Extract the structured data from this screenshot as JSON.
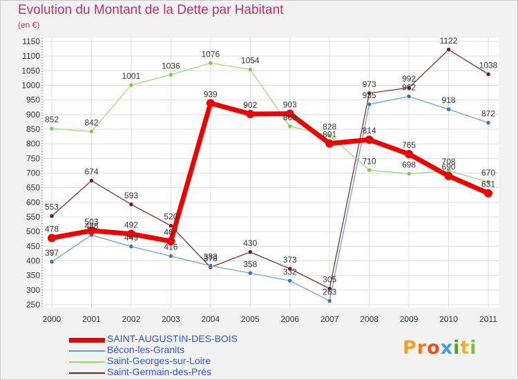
{
  "header": {
    "title": "Evolution du Montant de la Dette par Habitant",
    "unit": "(en €)"
  },
  "brand": {
    "text": "Proxiti",
    "colors": [
      "#f0a030",
      "#f07a20",
      "#e8501a",
      "#3aa0e0",
      "#5aa030",
      "#f0b020",
      "#80c040"
    ]
  },
  "chart_data": {
    "type": "line",
    "title": "Evolution du Montant de la Dette par Habitant",
    "ylabel": "(en €)",
    "xlabel": "",
    "ylim": [
      250,
      1150
    ],
    "y_ticks": [
      250,
      300,
      350,
      400,
      450,
      500,
      550,
      600,
      650,
      700,
      750,
      800,
      850,
      900,
      950,
      1000,
      1050,
      1100,
      1150
    ],
    "grid": true,
    "legend_position": "bottom-left",
    "x": [
      "2000",
      "2001",
      "2002",
      "2003",
      "2004",
      "2005",
      "2006",
      "2007",
      "2008",
      "2009",
      "2010",
      "2011"
    ],
    "series": [
      {
        "name": "Saint-Germain-des-Prés",
        "color": "#7a1f1f",
        "dot": "#6a1a1a",
        "width": 1.2,
        "dotr": 3,
        "values": [
          553,
          674,
          593,
          520,
          378,
          430,
          373,
          305,
          973,
          992,
          1122,
          1038
        ],
        "labels": [
          "553",
          "674",
          "593",
          "520",
          "378",
          "430",
          "373",
          "305",
          "973",
          "992",
          "1122",
          "1038"
        ]
      },
      {
        "name": "Saint-Georges-sur-Loire",
        "color": "#90dd70",
        "dot": "#7acc4a",
        "width": 1.2,
        "dotr": 3,
        "values": [
          852,
          842,
          1001,
          1036,
          1076,
          1054,
          860,
          828,
          710,
          698,
          708,
          670
        ],
        "labels": [
          "852",
          "842",
          "1001",
          "1036",
          "1076",
          "1054",
          "860",
          "828",
          "710",
          "698",
          "708",
          "670"
        ]
      },
      {
        "name": "Bécon-les-Granits",
        "color": "#6699cc",
        "dot": "#3377bb",
        "width": 1.2,
        "dotr": 3,
        "values": [
          397,
          488,
          449,
          416,
          383,
          358,
          332,
          263,
          935,
          962,
          918,
          872
        ],
        "labels": [
          "397",
          "488",
          "449",
          "416",
          "383",
          "358",
          "332",
          "263",
          "935",
          "962",
          "918",
          "872"
        ]
      },
      {
        "name": "SAINT-AUGUSTIN-DES-BOIS",
        "color": "#ee0000",
        "dot": "#ee0000",
        "width": 7,
        "dotr": 6,
        "values": [
          478,
          503,
          492,
          467,
          939,
          902,
          903,
          801,
          814,
          765,
          690,
          631
        ],
        "labels": [
          "478",
          "503",
          "492",
          "467",
          "939",
          "902",
          "903",
          "801",
          "814",
          "765",
          "690",
          "631"
        ]
      }
    ]
  },
  "legend": {
    "items": [
      {
        "label": "SAINT-AUGUSTIN-DES-BOIS",
        "color": "#ee0000",
        "thick": 7
      },
      {
        "label": "Bécon-les-Granits",
        "color": "#6699cc",
        "thick": 2
      },
      {
        "label": "Saint-Georges-sur-Loire",
        "color": "#90dd70",
        "thick": 2
      },
      {
        "label": "Saint-Germain-des-Prés",
        "color": "#7a1f1f",
        "thick": 2
      }
    ]
  }
}
